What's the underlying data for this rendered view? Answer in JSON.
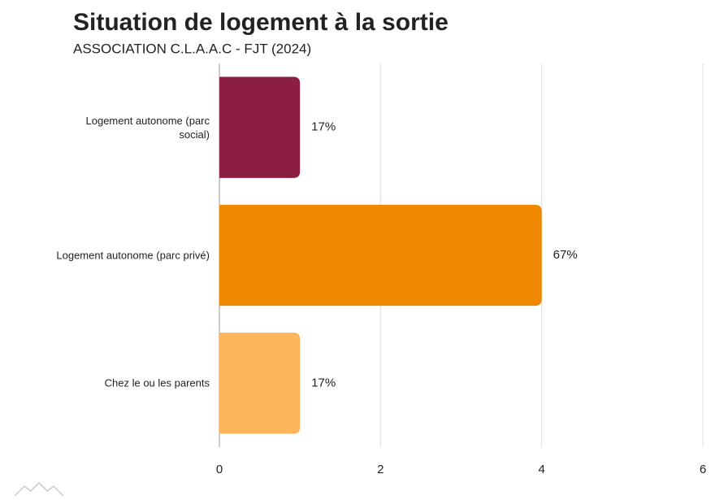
{
  "chart_data": {
    "type": "hbar",
    "title": "Situation de logement à la sortie",
    "subtitle": "ASSOCIATION C.L.A.A.C - FJT (2024)",
    "categories": [
      "Logement autonome (parc social)",
      "Logement autonome (parc privé)",
      "Chez le ou les parents"
    ],
    "values": [
      1,
      4,
      1
    ],
    "share_labels": [
      "17%",
      "67%",
      "17%"
    ],
    "colors": [
      "#8b1e41",
      "#ee8800",
      "#fdb55a"
    ],
    "xlim": [
      0,
      6
    ],
    "xticks": [
      0,
      2,
      4,
      6
    ],
    "grid": true
  }
}
